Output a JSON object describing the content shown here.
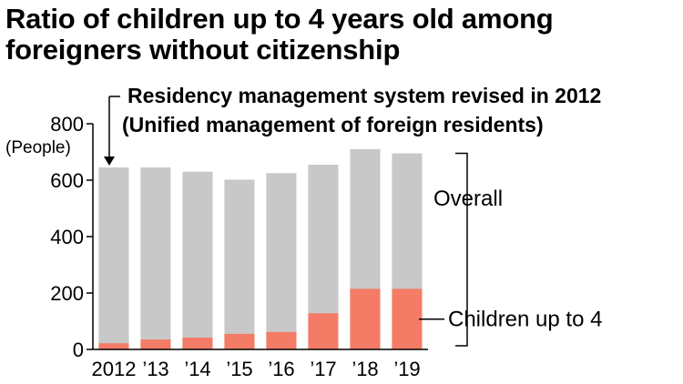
{
  "title_lines": [
    "Ratio of children up to 4 years old among",
    "foreigners without citizenship"
  ],
  "annotation_lines": [
    "Residency management system revised in 2012",
    "(Unified management of foreign residents)"
  ],
  "chart_data": {
    "type": "bar",
    "categories": [
      "2012",
      "’13",
      "’14",
      "’15",
      "’16",
      "’17",
      "’18",
      "’19"
    ],
    "series": [
      {
        "name": "Overall",
        "values": [
          645,
          645,
          630,
          602,
          625,
          655,
          710,
          695
        ],
        "color": "#c8c8c8"
      },
      {
        "name": "Children up to 4",
        "values": [
          22,
          35,
          42,
          55,
          62,
          128,
          215,
          215
        ],
        "color": "#f47c66"
      }
    ],
    "ylabel": "(People)",
    "ylim": [
      0,
      800
    ],
    "yticks": [
      "0",
      "200",
      "400",
      "600",
      "800"
    ],
    "grid": false,
    "overlay": true
  }
}
